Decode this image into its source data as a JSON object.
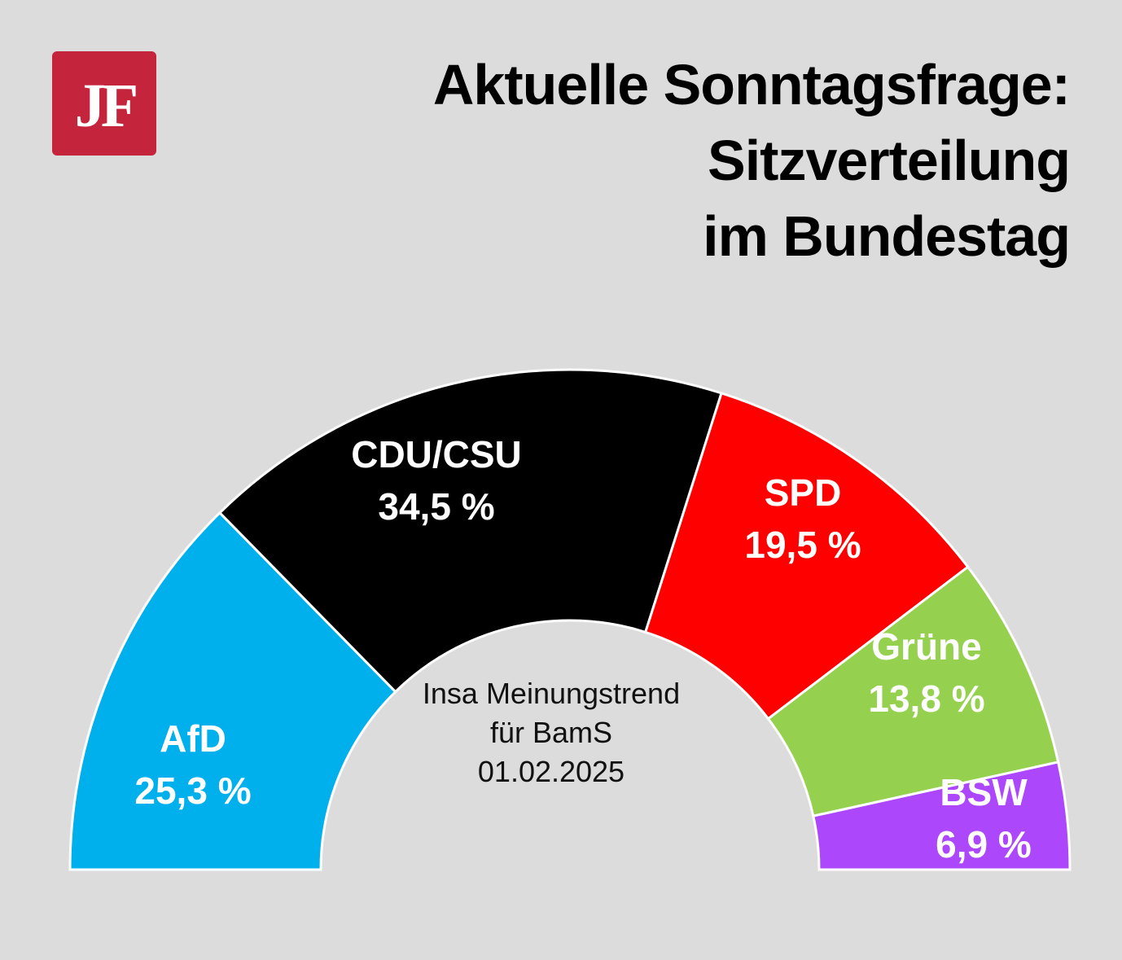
{
  "logo": {
    "text": "JF",
    "color": "#c4253d"
  },
  "title": [
    "Aktuelle Sonntagsfrage:",
    "Sitzverteilung",
    "im Bundestag"
  ],
  "center_text": [
    "Insa Meinungstrend",
    "für BamS",
    "01.02.2025"
  ],
  "chart_data": {
    "type": "pie",
    "variant": "half-donut",
    "unit": "%",
    "categories": [
      "AfD",
      "CDU/CSU",
      "SPD",
      "Grüne",
      "BSW"
    ],
    "values": [
      25.3,
      34.5,
      19.5,
      13.8,
      6.9
    ],
    "value_labels": [
      "25,3 %",
      "34,5 %",
      "19,5 %",
      "13,8 %",
      "6,9 %"
    ],
    "colors": [
      "#00b0ec",
      "#000000",
      "#ff0000",
      "#95d14f",
      "#ad47fb"
    ]
  }
}
